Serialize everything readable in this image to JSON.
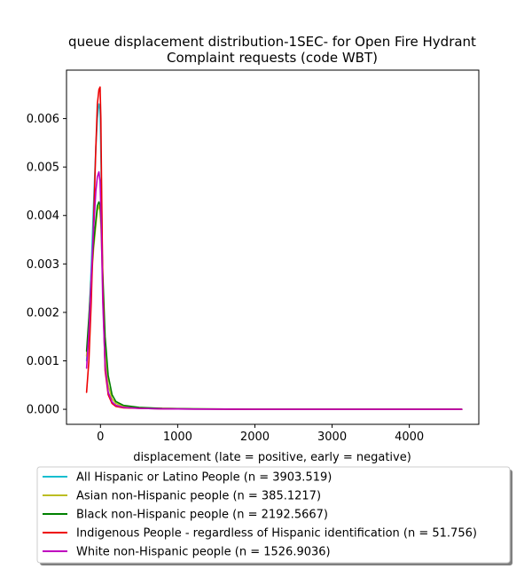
{
  "chart_data": {
    "type": "line",
    "title_lines": [
      "queue displacement distribution-1SEC-  for Open Fire Hydrant",
      "Complaint  requests (code WBT)"
    ],
    "xlabel": "displacement (late = positive, early = negative)",
    "ylabel": "",
    "xlim": [
      -440,
      4900
    ],
    "ylim": [
      -0.00031,
      0.007
    ],
    "xticks": [
      0,
      1000,
      2000,
      3000,
      4000
    ],
    "xtick_labels": [
      "0",
      "1000",
      "2000",
      "3000",
      "4000"
    ],
    "yticks": [
      0.0,
      0.001,
      0.002,
      0.003,
      0.004,
      0.005,
      0.006
    ],
    "ytick_labels": [
      "0.000",
      "0.001",
      "0.002",
      "0.003",
      "0.004",
      "0.005",
      "0.006"
    ],
    "grid": false,
    "legend_position": "below",
    "series": [
      {
        "name": "All Hispanic or Latino People (n = 3903.519)",
        "color": "#17becf",
        "x": [
          -180,
          -150,
          -120,
          -90,
          -60,
          -40,
          -20,
          -5,
          10,
          30,
          60,
          100,
          150,
          200,
          300,
          500,
          800,
          1200,
          2000,
          3000,
          4000,
          4680
        ],
        "y": [
          0.001,
          0.0018,
          0.0029,
          0.0042,
          0.0054,
          0.006,
          0.0063,
          0.0062,
          0.0048,
          0.0025,
          0.0009,
          0.00035,
          0.00015,
          8e-05,
          4e-05,
          2e-05,
          1e-05,
          5e-06,
          0.0,
          0.0,
          0.0,
          0.0
        ]
      },
      {
        "name": "Asian non-Hispanic people (n = 385.1217)",
        "color": "#bcbd22",
        "x": [
          -180,
          -150,
          -120,
          -90,
          -60,
          -40,
          -20,
          -5,
          10,
          30,
          60,
          100,
          150,
          200,
          300,
          500,
          800,
          1200,
          2000,
          3000,
          4000,
          4680
        ],
        "y": [
          0.0011,
          0.0018,
          0.0026,
          0.0033,
          0.0038,
          0.0041,
          0.0042,
          0.0041,
          0.0036,
          0.0025,
          0.0012,
          0.0005,
          0.00022,
          0.00012,
          6e-05,
          3e-05,
          2e-05,
          1e-05,
          0.0,
          0.0,
          0.0,
          0.0
        ]
      },
      {
        "name": "Black non-Hispanic people (n = 2192.5667)",
        "color": "#008000",
        "x": [
          -180,
          -150,
          -120,
          -90,
          -60,
          -40,
          -20,
          -5,
          10,
          30,
          60,
          100,
          150,
          200,
          300,
          500,
          800,
          1200,
          2000,
          3000,
          4000,
          4680
        ],
        "y": [
          0.0012,
          0.0019,
          0.0027,
          0.0034,
          0.0039,
          0.0042,
          0.00428,
          0.0042,
          0.0038,
          0.0028,
          0.0015,
          0.0007,
          0.0003,
          0.00016,
          8e-05,
          4e-05,
          2e-05,
          1e-05,
          0.0,
          0.0,
          0.0,
          0.0
        ]
      },
      {
        "name": "Indigenous People - regardless of Hispanic identification (n = 51.756)",
        "color": "#ee0000",
        "x": [
          -180,
          -150,
          -120,
          -90,
          -60,
          -40,
          -20,
          -5,
          5,
          15,
          30,
          60,
          100,
          150,
          200,
          300,
          500,
          800,
          1200,
          2000,
          3000,
          4000,
          4680
        ],
        "y": [
          0.00035,
          0.001,
          0.0022,
          0.0038,
          0.0054,
          0.0063,
          0.0066,
          0.00665,
          0.006,
          0.0045,
          0.0025,
          0.0008,
          0.0003,
          0.00012,
          6e-05,
          3e-05,
          2e-05,
          1e-05,
          5e-06,
          0.0,
          0.0,
          0.0,
          0.0
        ]
      },
      {
        "name": "White non-Hispanic people (n = 1526.9036)",
        "color": "#bf00bf",
        "x": [
          -180,
          -150,
          -120,
          -90,
          -60,
          -40,
          -20,
          -5,
          10,
          30,
          60,
          100,
          150,
          200,
          300,
          500,
          800,
          1200,
          2000,
          3000,
          4000,
          4680
        ],
        "y": [
          0.00085,
          0.0016,
          0.0027,
          0.0037,
          0.0045,
          0.0048,
          0.0049,
          0.0047,
          0.0038,
          0.0022,
          0.0009,
          0.00035,
          0.00015,
          8e-05,
          4e-05,
          2e-05,
          1e-05,
          5e-06,
          0.0,
          0.0,
          0.0,
          0.0
        ]
      }
    ]
  }
}
